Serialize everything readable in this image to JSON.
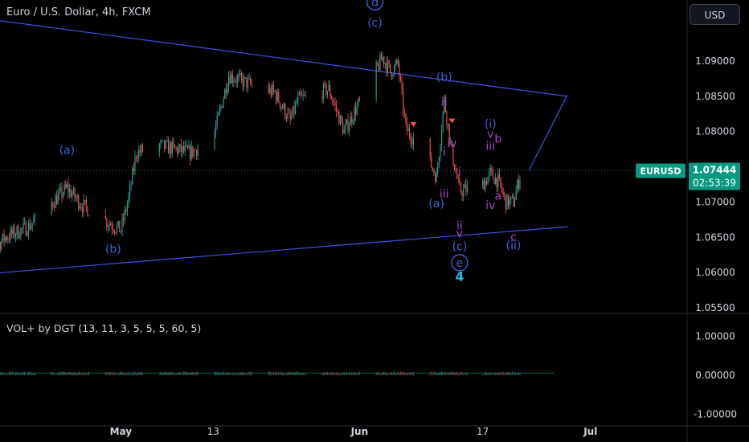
{
  "header": {
    "title": "Euro / U.S. Dollar, 4h, FXCM",
    "currency_button": "USD"
  },
  "indicator": {
    "title": "VOL+ by DGT (13, 11, 3, 5, 5, 5, 60, 5)"
  },
  "price_tag": {
    "symbol": "EURUSD",
    "price": "1.07444",
    "countdown": "02:53:39"
  },
  "colors": {
    "up": "#26a69a",
    "down": "#ef5350",
    "trendline": "#3f51e8",
    "wave_blue": "#3f63d4",
    "wave_purple": "#a445c4",
    "wave_cyan": "#29b6f6",
    "tag": "#089981"
  },
  "chart_data": {
    "type": "candlestick",
    "symbol": "EURUSD",
    "timeframe": "4h",
    "price_axis_ticks": [
      "1.09000",
      "1.08500",
      "1.08000",
      "1.07500",
      "1.07000",
      "1.06500",
      "1.06000",
      "1.05500"
    ],
    "volume_axis_ticks": [
      "1.00000",
      "0.00000",
      "-1.00000"
    ],
    "x_axis_ticks": [
      "May",
      "13",
      "Jun",
      "17",
      "Jul"
    ],
    "ylim": [
      1.053,
      1.0955
    ],
    "ohlc_anchors": [
      {
        "x": "Apr 11",
        "close": 1.0595
      },
      {
        "x": "Apr 16",
        "close": 1.065
      },
      {
        "x": "Apr 19",
        "close": 1.0665
      },
      {
        "x": "Apr 24",
        "close": 1.072
      },
      {
        "x": "Apr 26",
        "close": 1.0695
      },
      {
        "x": "May 1",
        "close": 1.066
      },
      {
        "x": "May 2",
        "close": 1.0705
      },
      {
        "x": "May 3",
        "close": 1.077
      },
      {
        "x": "May 6",
        "close": 1.078
      },
      {
        "x": "May 10",
        "close": 1.077
      },
      {
        "x": "May 13",
        "close": 1.079
      },
      {
        "x": "May 15",
        "close": 1.088
      },
      {
        "x": "May 17",
        "close": 1.087
      },
      {
        "x": "May 21",
        "close": 1.0855
      },
      {
        "x": "May 23",
        "close": 1.0815
      },
      {
        "x": "May 24",
        "close": 1.0845
      },
      {
        "x": "May 28",
        "close": 1.086
      },
      {
        "x": "May 30",
        "close": 1.08
      },
      {
        "x": "Jun 4",
        "close": 1.0905
      },
      {
        "x": "Jun 5",
        "close": 1.0885
      },
      {
        "x": "Jun 6",
        "close": 1.0895
      },
      {
        "x": "Jun 7",
        "close": 1.0805
      },
      {
        "x": "Jun 10",
        "close": 1.076
      },
      {
        "x": "Jun 11",
        "close": 1.0735
      },
      {
        "x": "Jun 12",
        "close": 1.0845
      },
      {
        "x": "Jun 13",
        "close": 1.077
      },
      {
        "x": "Jun 14",
        "close": 1.0715
      },
      {
        "x": "Jun 17",
        "close": 1.0725
      },
      {
        "x": "Jun 18",
        "close": 1.074
      },
      {
        "x": "Jun 19",
        "close": 1.073
      },
      {
        "x": "Jun 20",
        "close": 1.07
      },
      {
        "x": "Jun 21",
        "close": 1.07
      },
      {
        "x": "Jun 22",
        "close": 1.07444
      }
    ],
    "trendlines": [
      {
        "from": {
          "x": "Apr 10",
          "price": 1.0965
        },
        "to": {
          "x": "Jun 28",
          "price": 1.085
        }
      },
      {
        "from": {
          "x": "Apr 10",
          "price": 1.0595
        },
        "to": {
          "x": "Jun 28",
          "price": 1.0665
        }
      },
      {
        "from": {
          "x": "Jun 23",
          "price": 1.0745
        },
        "to": {
          "x": "Jun 28",
          "price": 1.0852
        }
      }
    ],
    "current_price": 1.07444,
    "wave_labels": [
      {
        "text": "d",
        "circled": true,
        "style": "blue",
        "x": "Jun 3",
        "price": 1.0984
      },
      {
        "text": "(c)",
        "style": "blue",
        "x": "Jun 3",
        "price": 1.0955
      },
      {
        "text": "(a)",
        "style": "blue",
        "x": "Apr 24",
        "price": 1.0774
      },
      {
        "text": "(b)",
        "style": "blue",
        "x": "Apr 30",
        "price": 1.0634
      },
      {
        "text": "(b)",
        "style": "blue",
        "x": "Jun 12",
        "price": 1.0878
      },
      {
        "text": "(a)",
        "style": "blue",
        "x": "Jun 11",
        "price": 1.0698
      },
      {
        "text": "(c)",
        "style": "blue",
        "x": "Jun 14",
        "price": 1.0637
      },
      {
        "text": "e",
        "circled": true,
        "style": "blue",
        "x": "Jun 14",
        "price": 1.0614
      },
      {
        "text": "4",
        "style": "cyan",
        "x": "Jun 14",
        "price": 1.0594
      },
      {
        "text": "(i)",
        "style": "blue",
        "x": "Jun 18",
        "price": 1.0811
      },
      {
        "text": "(ii)",
        "style": "blue",
        "x": "Jun 21",
        "price": 1.0639
      },
      {
        "text": "ii",
        "style": "purple",
        "x": "Jun 12",
        "price": 1.0842
      },
      {
        "text": "i",
        "style": "purple",
        "x": "Jun 12",
        "price": 1.0772
      },
      {
        "text": "iv",
        "style": "purple",
        "x": "Jun 13",
        "price": 1.0784
      },
      {
        "text": "i",
        "style": "purple",
        "x": "Jun 14",
        "price": 1.0743
      },
      {
        "text": "iii",
        "style": "purple",
        "x": "Jun 12",
        "price": 1.0712
      },
      {
        "text": "ii",
        "style": "purple",
        "x": "Jun 14",
        "price": 1.0667
      },
      {
        "text": "v",
        "style": "purple",
        "x": "Jun 14",
        "price": 1.0656
      },
      {
        "text": "iii",
        "style": "purple",
        "x": "Jun 18",
        "price": 1.078
      },
      {
        "text": "v",
        "style": "purple",
        "x": "Jun 18",
        "price": 1.0797
      },
      {
        "text": "b",
        "style": "purple",
        "x": "Jun 19",
        "price": 1.079
      },
      {
        "text": "a",
        "style": "purple",
        "x": "Jun 19",
        "price": 1.0709
      },
      {
        "text": "iv",
        "style": "purple",
        "x": "Jun 18",
        "price": 1.0696
      },
      {
        "text": "c",
        "style": "purple",
        "x": "Jun 21",
        "price": 1.0651
      }
    ],
    "volume_scale": [
      -1,
      1
    ],
    "volume_note": "histogram bars with values near 0.0 to 0.1 across the full range"
  }
}
